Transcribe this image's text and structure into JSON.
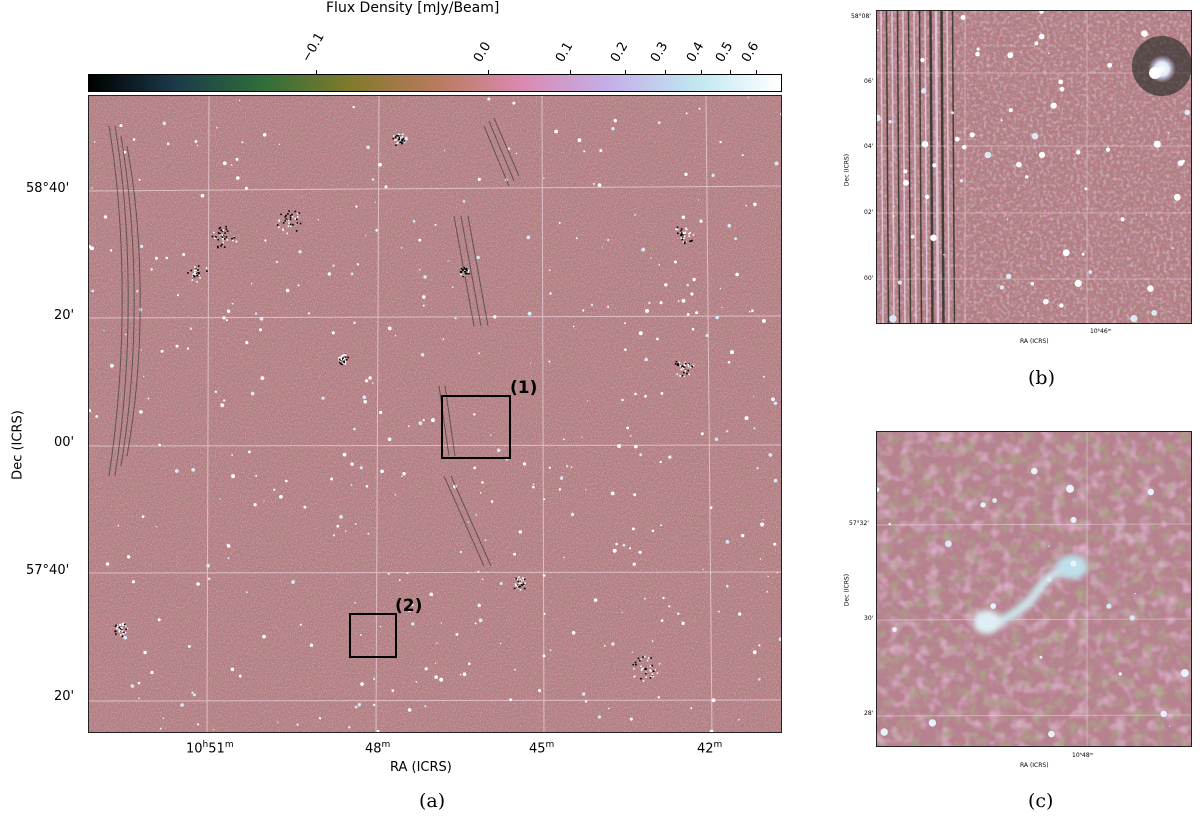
{
  "colorbar": {
    "title": "Flux Density [mJy/Beam]",
    "ticks": [
      "−0.1",
      "0.0",
      "0.1",
      "0.2",
      "0.3",
      "0.4",
      "0.5",
      "0.6"
    ],
    "range": [
      -0.2,
      0.6
    ],
    "colors": [
      "#000000",
      "#1b3a4a",
      "#2e6e3a",
      "#7f7a2a",
      "#b87a5c",
      "#d98ab0",
      "#c5aee8",
      "#bfe6f0",
      "#ffffff"
    ]
  },
  "panels": {
    "a": {
      "letter": "(a)",
      "xlabel": "RA (ICRS)",
      "ylabel": "Dec (ICRS)",
      "x_ticks": [
        {
          "base": "10",
          "sup1": "h",
          "mid": "51",
          "sup2": "m"
        },
        {
          "base": "48",
          "sup1": "m"
        },
        {
          "base": "45",
          "sup1": "m"
        },
        {
          "base": "42",
          "sup1": "m"
        }
      ],
      "y_ticks": [
        "58°40'",
        "20'",
        "00'",
        "57°40'",
        "20'"
      ],
      "boxes": [
        "(1)",
        "(2)"
      ],
      "background": "#b47a82"
    },
    "b": {
      "letter": "(b)",
      "xlabel": "RA (ICRS)",
      "ylabel": "Dec (ICRS)",
      "x_tick": "10ʰ46ᵐ",
      "y_ticks": [
        "58°08'",
        "06'",
        "04'",
        "02'",
        "00'"
      ]
    },
    "c": {
      "letter": "(c)",
      "xlabel": "RA (ICRS)",
      "ylabel": "Dec (ICRS)",
      "x_tick": "10ʰ48ᵐ",
      "y_ticks": [
        "57°32'",
        "30'",
        "28'"
      ]
    }
  }
}
